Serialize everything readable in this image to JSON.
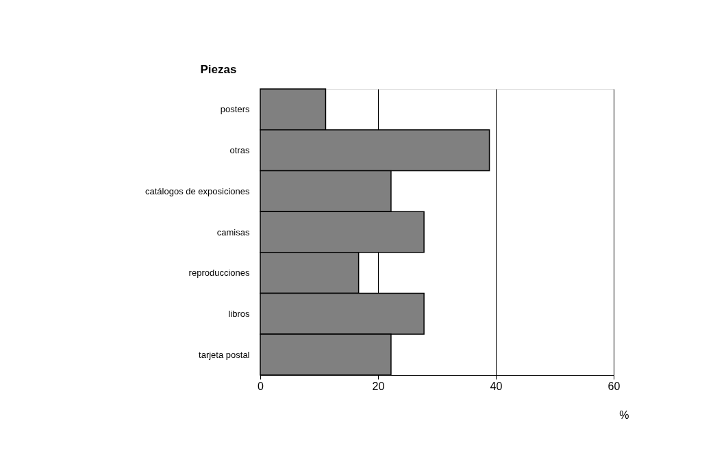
{
  "chart_data": {
    "type": "bar",
    "orientation": "horizontal",
    "ylabel": "Piezas",
    "xlabel": "%",
    "categories": [
      "posters",
      "otras",
      "catálogos de exposiciones",
      "camisas",
      "reproducciones",
      "libros",
      "tarjeta postal"
    ],
    "values": [
      11.1,
      38.9,
      22.2,
      27.8,
      16.7,
      27.8,
      22.2
    ],
    "color": "#808080",
    "xlim": [
      0,
      60
    ],
    "xticks": [
      0,
      20,
      40,
      60
    ],
    "grid": "x"
  }
}
